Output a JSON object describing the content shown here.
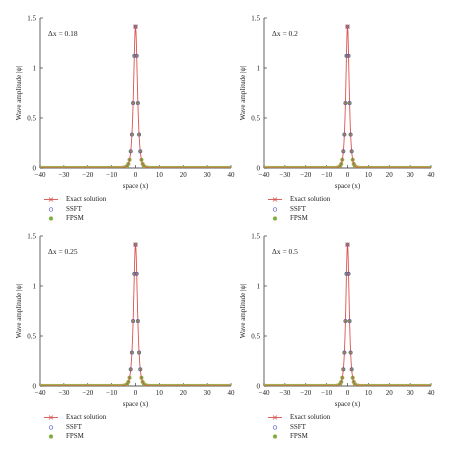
{
  "colors": {
    "exact": "#d9534f",
    "ssft": "#5b5bc2",
    "fpsm": "#6bb34a",
    "fpsm_edge": "#c9a64a",
    "axis": "#222222"
  },
  "chart_data": [
    {
      "type": "line",
      "annotation": "Δx = 0.18",
      "xlabel": "space (x)",
      "ylabel": "Wave amplitude |ψ|",
      "xlim": [
        -40,
        40
      ],
      "ylim": [
        0,
        1.5
      ],
      "xticks": [
        "−40",
        "−30",
        "−20",
        "−10",
        "0",
        "10",
        "20",
        "30",
        "40"
      ],
      "yticks": [
        "0",
        "0.5",
        "1",
        "1.5"
      ],
      "peak": 1.414,
      "dx": 0.18,
      "marker_stride": 0.5,
      "legend": [
        "Exact solution",
        "SSFT",
        "FPSM"
      ],
      "series": [
        {
          "name": "Exact solution",
          "x": [
            -40,
            -6,
            -4,
            -3,
            -2,
            -1.5,
            -1,
            -0.5,
            0,
            0.5,
            1,
            1.5,
            2,
            3,
            4,
            6,
            40
          ],
          "values": [
            0,
            0.0035,
            0.026,
            0.07,
            0.189,
            0.306,
            0.48,
            0.76,
            1.414,
            0.76,
            0.48,
            0.306,
            0.189,
            0.07,
            0.026,
            0.0035,
            0
          ]
        },
        {
          "name": "SSFT",
          "x": [
            -40,
            -6,
            -4,
            -3,
            -2,
            -1.5,
            -1,
            -0.5,
            0,
            0.5,
            1,
            1.5,
            2,
            3,
            4,
            6,
            40
          ],
          "values": [
            0,
            0.0035,
            0.026,
            0.07,
            0.189,
            0.306,
            0.48,
            0.76,
            1.414,
            0.76,
            0.48,
            0.306,
            0.189,
            0.07,
            0.026,
            0.0035,
            0
          ]
        },
        {
          "name": "FPSM",
          "x": [
            -40,
            -6,
            -4,
            -3,
            -2,
            -1.5,
            -1,
            -0.5,
            0,
            0.5,
            1,
            1.5,
            2,
            3,
            4,
            6,
            40
          ],
          "values": [
            0,
            0.0035,
            0.026,
            0.07,
            0.189,
            0.306,
            0.48,
            0.76,
            1.414,
            0.76,
            0.48,
            0.306,
            0.189,
            0.07,
            0.026,
            0.0035,
            0
          ]
        }
      ]
    },
    {
      "type": "line",
      "annotation": "Δx = 0.2",
      "xlabel": "space (x)",
      "ylabel": "Wave amplitude |ψ|",
      "xlim": [
        -40,
        40
      ],
      "ylim": [
        0,
        1.5
      ],
      "xticks": [
        "−40",
        "−30",
        "−20",
        "−10",
        "0",
        "10",
        "20",
        "30",
        "40"
      ],
      "yticks": [
        "0",
        "0.5",
        "1",
        "1.5"
      ],
      "peak": 1.414,
      "dx": 0.2,
      "marker_stride": 0.5,
      "legend": [
        "Exact solution",
        "SSFT",
        "FPSM"
      ],
      "series": [
        {
          "name": "Exact solution",
          "x": [
            -40,
            -6,
            -4,
            -3,
            -2,
            -1.5,
            -1,
            -0.5,
            0,
            0.5,
            1,
            1.5,
            2,
            3,
            4,
            6,
            40
          ],
          "values": [
            0,
            0.0035,
            0.026,
            0.07,
            0.189,
            0.306,
            0.48,
            0.76,
            1.414,
            0.76,
            0.48,
            0.306,
            0.189,
            0.07,
            0.026,
            0.0035,
            0
          ]
        },
        {
          "name": "SSFT",
          "x": [
            -40,
            -6,
            -4,
            -3,
            -2,
            -1.5,
            -1,
            -0.5,
            0,
            0.5,
            1,
            1.5,
            2,
            3,
            4,
            6,
            40
          ],
          "values": [
            0,
            0.0035,
            0.026,
            0.07,
            0.189,
            0.306,
            0.48,
            0.76,
            1.414,
            0.76,
            0.48,
            0.306,
            0.189,
            0.07,
            0.026,
            0.0035,
            0
          ]
        },
        {
          "name": "FPSM",
          "x": [
            -40,
            -6,
            -4,
            -3,
            -2,
            -1.5,
            -1,
            -0.5,
            0,
            0.5,
            1,
            1.5,
            2,
            3,
            4,
            6,
            40
          ],
          "values": [
            0,
            0.0035,
            0.026,
            0.07,
            0.189,
            0.306,
            0.48,
            0.76,
            1.414,
            0.76,
            0.48,
            0.306,
            0.189,
            0.07,
            0.026,
            0.0035,
            0
          ]
        }
      ]
    },
    {
      "type": "line",
      "annotation": "Δx = 0.25",
      "xlabel": "space (x)",
      "ylabel": "Wave amplitude |ψ|",
      "xlim": [
        -40,
        40
      ],
      "ylim": [
        0,
        1.5
      ],
      "xticks": [
        "−40",
        "−30",
        "−20",
        "−10",
        "0",
        "10",
        "20",
        "30",
        "40"
      ],
      "yticks": [
        "0",
        "0.5",
        "1",
        "1.5"
      ],
      "peak": 1.414,
      "dx": 0.25,
      "marker_stride": 0.5,
      "legend": [
        "Exact solution",
        "SSFT",
        "FPSM"
      ],
      "series": [
        {
          "name": "Exact solution",
          "x": [
            -40,
            -6,
            -4,
            -3,
            -2,
            -1.5,
            -1,
            -0.5,
            0,
            0.5,
            1,
            1.5,
            2,
            3,
            4,
            6,
            40
          ],
          "values": [
            0,
            0.0035,
            0.026,
            0.07,
            0.189,
            0.306,
            0.48,
            0.76,
            1.414,
            0.76,
            0.48,
            0.306,
            0.189,
            0.07,
            0.026,
            0.0035,
            0
          ]
        },
        {
          "name": "SSFT",
          "x": [
            -40,
            -6,
            -4,
            -3,
            -2,
            -1.5,
            -1,
            -0.5,
            0,
            0.5,
            1,
            1.5,
            2,
            3,
            4,
            6,
            40
          ],
          "values": [
            0,
            0.0035,
            0.026,
            0.07,
            0.189,
            0.306,
            0.48,
            0.76,
            1.414,
            0.76,
            0.48,
            0.306,
            0.189,
            0.07,
            0.026,
            0.0035,
            0
          ]
        },
        {
          "name": "FPSM",
          "x": [
            -40,
            -6,
            -4,
            -3,
            -2,
            -1.5,
            -1,
            -0.5,
            0,
            0.5,
            1,
            1.5,
            2,
            3,
            4,
            6,
            40
          ],
          "values": [
            0,
            0.0035,
            0.026,
            0.07,
            0.189,
            0.306,
            0.48,
            0.76,
            1.414,
            0.76,
            0.48,
            0.306,
            0.189,
            0.07,
            0.026,
            0.0035,
            0
          ]
        }
      ]
    },
    {
      "type": "line",
      "annotation": "Δx = 0.5",
      "xlabel": "space (x)",
      "ylabel": "Wave amplitude |ψ|",
      "xlim": [
        -40,
        40
      ],
      "ylim": [
        0,
        1.5
      ],
      "xticks": [
        "−40",
        "−30",
        "−20",
        "−10",
        "0",
        "10",
        "20",
        "30",
        "40"
      ],
      "yticks": [
        "0",
        "0.5",
        "1",
        "1.5"
      ],
      "peak": 1.414,
      "dx": 0.5,
      "marker_stride": 0.5,
      "legend": [
        "Exact solution",
        "SSFT",
        "FPSM"
      ],
      "series": [
        {
          "name": "Exact solution",
          "x": [
            -40,
            -6,
            -4,
            -3,
            -2,
            -1.5,
            -1,
            -0.5,
            0,
            0.5,
            1,
            1.5,
            2,
            3,
            4,
            6,
            40
          ],
          "values": [
            0,
            0.0035,
            0.026,
            0.07,
            0.189,
            0.306,
            0.48,
            0.76,
            1.414,
            0.76,
            0.48,
            0.306,
            0.189,
            0.07,
            0.026,
            0.0035,
            0
          ]
        },
        {
          "name": "SSFT",
          "x": [
            -40,
            -6,
            -4,
            -3,
            -2,
            -1.5,
            -1,
            -0.5,
            0,
            0.5,
            1,
            1.5,
            2,
            3,
            4,
            6,
            40
          ],
          "values": [
            0,
            0.0035,
            0.026,
            0.07,
            0.189,
            0.306,
            0.48,
            0.76,
            1.414,
            0.76,
            0.48,
            0.306,
            0.189,
            0.07,
            0.026,
            0.0035,
            0
          ]
        },
        {
          "name": "FPSM",
          "x": [
            -40,
            -6,
            -4,
            -3,
            -2,
            -1.5,
            -1,
            -0.5,
            0,
            0.5,
            1,
            1.5,
            2,
            3,
            4,
            6,
            40
          ],
          "values": [
            0,
            0.0035,
            0.026,
            0.07,
            0.189,
            0.306,
            0.48,
            0.76,
            1.414,
            0.76,
            0.48,
            0.306,
            0.189,
            0.07,
            0.026,
            0.0035,
            0
          ]
        }
      ]
    }
  ]
}
